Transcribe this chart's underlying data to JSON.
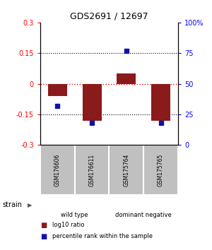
{
  "title": "GDS2691 / 12697",
  "samples": [
    "GSM176606",
    "GSM176611",
    "GSM175764",
    "GSM175765"
  ],
  "log10_ratios": [
    -0.06,
    -0.18,
    0.05,
    -0.18
  ],
  "percentile_ranks": [
    32,
    18,
    77,
    18
  ],
  "groups": [
    {
      "label": "wild type",
      "samples": [
        0,
        1
      ],
      "color": "#90EE90"
    },
    {
      "label": "dominant negative",
      "samples": [
        2,
        3
      ],
      "color": "#66CC66"
    }
  ],
  "ylim_left": [
    -0.3,
    0.3
  ],
  "ylim_right": [
    0,
    100
  ],
  "yticks_left": [
    -0.3,
    -0.15,
    0,
    0.15,
    0.3
  ],
  "yticks_right": [
    0,
    25,
    50,
    75,
    100
  ],
  "bar_color": "#8B1A1A",
  "dot_color": "#1111AA",
  "sample_bg_color": "#C0C0C0",
  "legend_red_label": "log10 ratio",
  "legend_blue_label": "percentile rank within the sample",
  "strain_label": "strain",
  "bar_width": 0.55
}
